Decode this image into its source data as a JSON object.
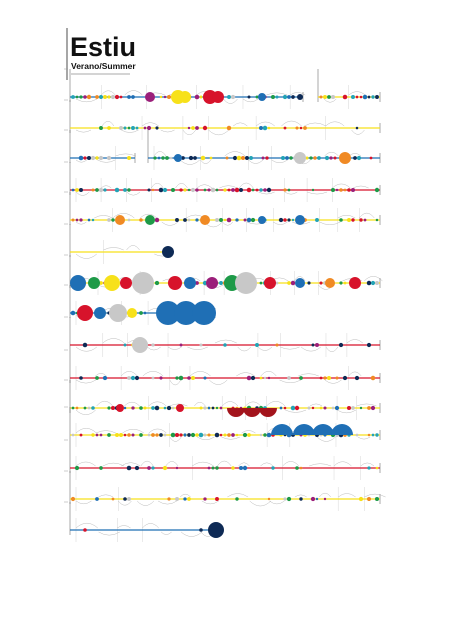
{
  "header": {
    "title": "Estiu",
    "subtitle": "Verano/Summer"
  }
}
